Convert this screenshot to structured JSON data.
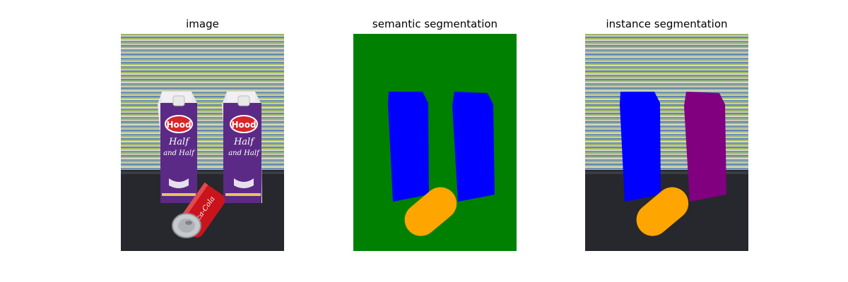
{
  "panels": [
    {
      "title": "image"
    },
    {
      "title": "semantic segmentation"
    },
    {
      "title": "instance segmentation"
    }
  ],
  "photo": {
    "carton_brand": "Hood",
    "carton_product_line1": "Half",
    "carton_product_line2": "and Half",
    "can_text": "Coca-Cola"
  },
  "colors": {
    "background_class": "#008000",
    "carton_class": "#0000ff",
    "can_class": "#ffa500",
    "carton_instance_1": "#0000ff",
    "carton_instance_2": "#800080",
    "can_instance_1": "#ffa500"
  }
}
